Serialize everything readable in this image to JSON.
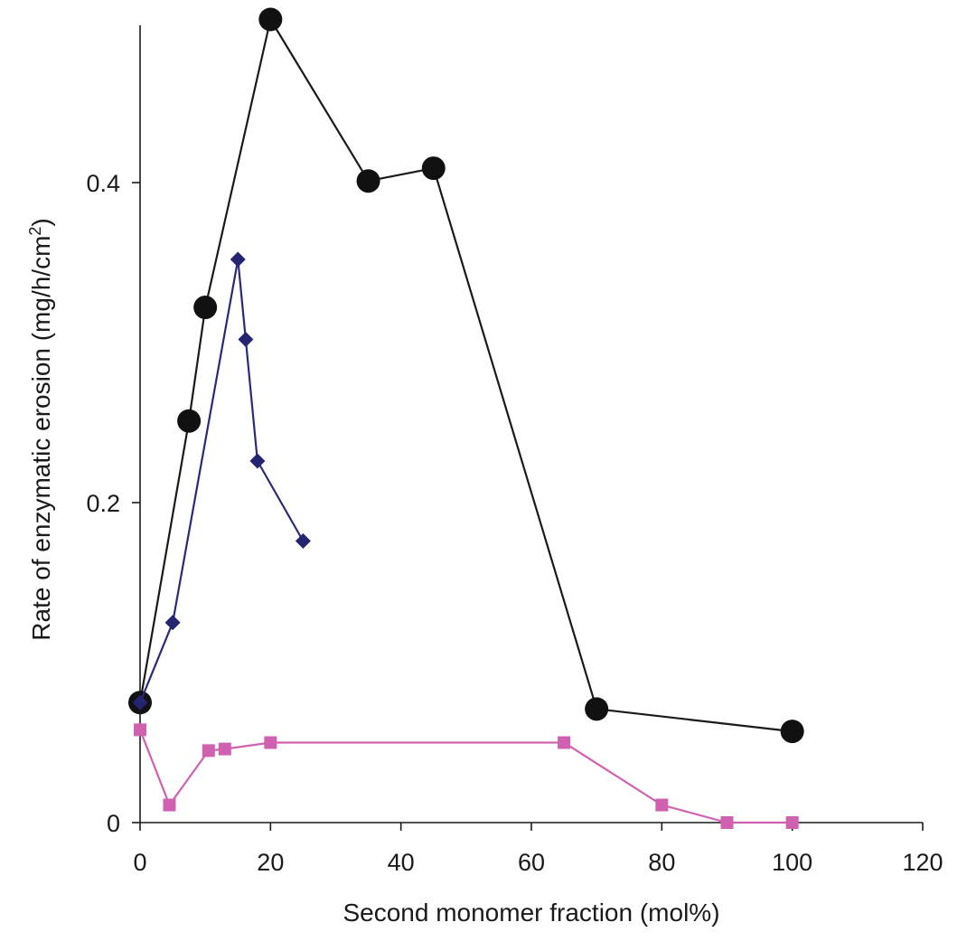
{
  "chart_data": {
    "type": "line",
    "title": "",
    "xlabel": "Second monomer fraction (mol%)",
    "ylabel_main": "Rate of enzymatic erosion (mg/h/cm",
    "ylabel_sup": "2",
    "ylabel_end": ")",
    "xlim": [
      0,
      120
    ],
    "ylim": [
      0,
      0.5
    ],
    "xticks": [
      0,
      20,
      40,
      60,
      80,
      100,
      120
    ],
    "yticks": [
      0,
      0.2,
      0.4
    ],
    "xtick_labels": [
      "0",
      "20",
      "40",
      "60",
      "80",
      "100",
      "120"
    ],
    "ytick_labels": [
      "0",
      "0.2",
      "0.4"
    ],
    "grid": false,
    "legend": "none",
    "series": [
      {
        "marker": "circle",
        "line_color": "#1a1a1a",
        "marker_color": "#111111",
        "x": [
          0,
          7.5,
          10,
          20,
          35,
          45,
          70,
          100
        ],
        "y": [
          0.075,
          0.251,
          0.322,
          0.502,
          0.401,
          0.409,
          0.071,
          0.057
        ]
      },
      {
        "marker": "diamond",
        "line_color": "#2a2a7a",
        "marker_color": "#242470",
        "x": [
          0,
          5,
          15,
          16.2,
          18,
          25
        ],
        "y": [
          0.075,
          0.125,
          0.352,
          0.302,
          0.226,
          0.176
        ]
      },
      {
        "marker": "square",
        "line_color": "#d060b0",
        "marker_color": "#d060b0",
        "x": [
          0,
          4.5,
          10.5,
          13,
          20,
          65,
          80,
          90,
          100
        ],
        "y": [
          0.058,
          0.011,
          0.045,
          0.046,
          0.05,
          0.05,
          0.011,
          0,
          0
        ]
      }
    ]
  }
}
